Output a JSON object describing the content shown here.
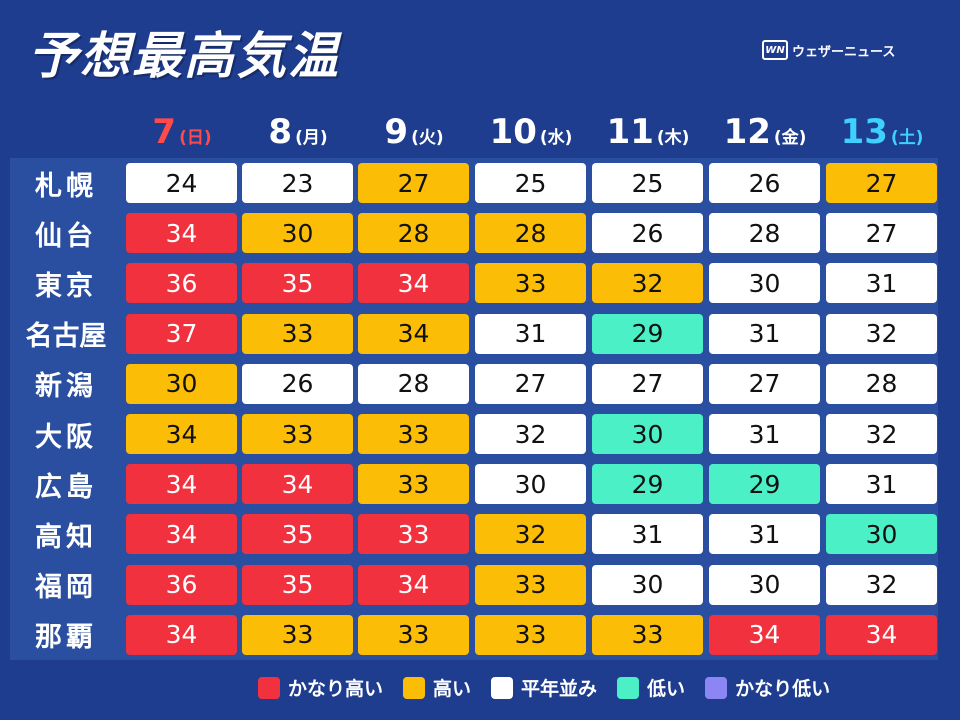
{
  "title": "予想最高気温",
  "brand": {
    "logo_text": "WN",
    "name": "ウェザーニュース"
  },
  "colors": {
    "かなり高い": "#f2313f",
    "高い": "#fbbd05",
    "平年並み": "#ffffff",
    "低い": "#4cf0c6",
    "かなり低い": "#8c86f4",
    "header_sun": "#ff4a4a",
    "header_sat": "#3ed0ff",
    "header_default": "#ffffff"
  },
  "chart_data": {
    "type": "table",
    "title": "予想最高気温",
    "columns": [
      {
        "day": "7",
        "weekday": "(日)",
        "kind": "sun"
      },
      {
        "day": "8",
        "weekday": "(月)",
        "kind": "weekday"
      },
      {
        "day": "9",
        "weekday": "(火)",
        "kind": "weekday"
      },
      {
        "day": "10",
        "weekday": "(水)",
        "kind": "weekday"
      },
      {
        "day": "11",
        "weekday": "(木)",
        "kind": "weekday"
      },
      {
        "day": "12",
        "weekday": "(金)",
        "kind": "weekday"
      },
      {
        "day": "13",
        "weekday": "(土)",
        "kind": "sat"
      }
    ],
    "rows": [
      {
        "city": "札幌",
        "values": [
          24,
          23,
          27,
          25,
          25,
          26,
          27
        ],
        "levels": [
          "平年並み",
          "平年並み",
          "高い",
          "平年並み",
          "平年並み",
          "平年並み",
          "高い"
        ]
      },
      {
        "city": "仙台",
        "values": [
          34,
          30,
          28,
          28,
          26,
          28,
          27
        ],
        "levels": [
          "かなり高い",
          "高い",
          "高い",
          "高い",
          "平年並み",
          "平年並み",
          "平年並み"
        ]
      },
      {
        "city": "東京",
        "values": [
          36,
          35,
          34,
          33,
          32,
          30,
          31
        ],
        "levels": [
          "かなり高い",
          "かなり高い",
          "かなり高い",
          "高い",
          "高い",
          "平年並み",
          "平年並み"
        ]
      },
      {
        "city": "名古屋",
        "values": [
          37,
          33,
          34,
          31,
          29,
          31,
          32
        ],
        "levels": [
          "かなり高い",
          "高い",
          "高い",
          "平年並み",
          "低い",
          "平年並み",
          "平年並み"
        ]
      },
      {
        "city": "新潟",
        "values": [
          30,
          26,
          28,
          27,
          27,
          27,
          28
        ],
        "levels": [
          "高い",
          "平年並み",
          "平年並み",
          "平年並み",
          "平年並み",
          "平年並み",
          "平年並み"
        ]
      },
      {
        "city": "大阪",
        "values": [
          34,
          33,
          33,
          32,
          30,
          31,
          32
        ],
        "levels": [
          "高い",
          "高い",
          "高い",
          "平年並み",
          "低い",
          "平年並み",
          "平年並み"
        ]
      },
      {
        "city": "広島",
        "values": [
          34,
          34,
          33,
          30,
          29,
          29,
          31
        ],
        "levels": [
          "かなり高い",
          "かなり高い",
          "高い",
          "平年並み",
          "低い",
          "低い",
          "平年並み"
        ]
      },
      {
        "city": "高知",
        "values": [
          34,
          35,
          33,
          32,
          31,
          31,
          30
        ],
        "levels": [
          "かなり高い",
          "かなり高い",
          "かなり高い",
          "高い",
          "平年並み",
          "平年並み",
          "低い"
        ]
      },
      {
        "city": "福岡",
        "values": [
          36,
          35,
          34,
          33,
          30,
          30,
          32
        ],
        "levels": [
          "かなり高い",
          "かなり高い",
          "かなり高い",
          "高い",
          "平年並み",
          "平年並み",
          "平年並み"
        ]
      },
      {
        "city": "那覇",
        "values": [
          34,
          33,
          33,
          33,
          33,
          34,
          34
        ],
        "levels": [
          "かなり高い",
          "高い",
          "高い",
          "高い",
          "高い",
          "かなり高い",
          "かなり高い"
        ]
      }
    ],
    "legend": [
      "かなり高い",
      "高い",
      "平年並み",
      "低い",
      "かなり低い"
    ]
  }
}
